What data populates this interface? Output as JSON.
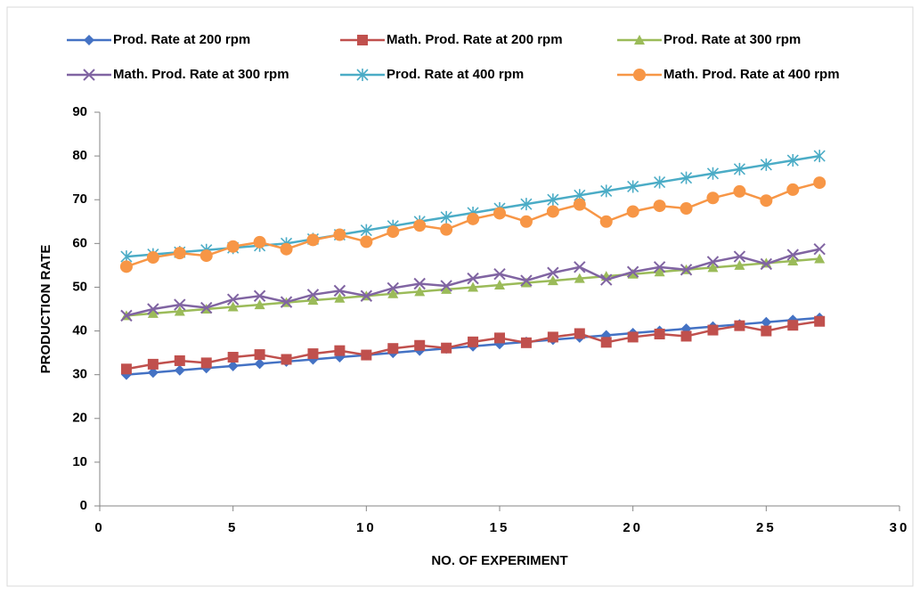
{
  "chart_data": {
    "type": "line",
    "x_label": "NO. OF EXPERIMENT",
    "y_label": "PRODUCTION RATE",
    "x": [
      1,
      2,
      3,
      4,
      5,
      6,
      7,
      8,
      9,
      10,
      11,
      12,
      13,
      14,
      15,
      16,
      17,
      18,
      19,
      20,
      21,
      22,
      23,
      24,
      25,
      26,
      27
    ],
    "xlim": [
      0,
      30
    ],
    "xticks": [
      0,
      5,
      10,
      15,
      20,
      25,
      30
    ],
    "ylim": [
      0,
      90
    ],
    "yticks": [
      0,
      10,
      20,
      30,
      40,
      50,
      60,
      70,
      80,
      90
    ],
    "grid": false,
    "legend": "top",
    "series": [
      {
        "name": "Prod. Rate at 200 rpm",
        "color": "#4472c4",
        "marker": "diamond",
        "values": [
          30,
          30.5,
          31,
          31.5,
          32,
          32.5,
          33,
          33.5,
          34,
          34.5,
          35,
          35.5,
          36,
          36.5,
          37,
          37.5,
          38,
          38.5,
          39,
          39.5,
          40,
          40.5,
          41,
          41.5,
          42,
          42.5,
          43
        ]
      },
      {
        "name": "Math. Prod. Rate at 200 rpm",
        "color": "#c0504d",
        "marker": "square",
        "values": [
          31.3,
          32.4,
          33.2,
          32.7,
          34,
          34.6,
          33.5,
          34.8,
          35.5,
          34.5,
          36,
          36.7,
          36.1,
          37.5,
          38.4,
          37.3,
          38.6,
          39.4,
          37.4,
          38.6,
          39.3,
          38.8,
          40.2,
          41.2,
          40,
          41.3,
          42.2
        ]
      },
      {
        "name": "Prod. Rate at 300 rpm",
        "color": "#9bbb59",
        "marker": "triangle",
        "values": [
          43.5,
          44,
          44.5,
          45,
          45.5,
          46,
          46.5,
          47,
          47.5,
          48,
          48.5,
          49,
          49.5,
          50,
          50.5,
          51,
          51.5,
          52,
          52.5,
          53,
          53.5,
          54,
          54.5,
          55,
          55.5,
          56,
          56.5
        ]
      },
      {
        "name": "Math. Prod. Rate at 300 rpm",
        "color": "#8064a2",
        "marker": "x",
        "values": [
          43.5,
          45,
          46,
          45.3,
          47.2,
          48,
          46.6,
          48.3,
          49.2,
          48,
          49.8,
          50.8,
          50.3,
          52,
          53,
          51.5,
          53.3,
          54.6,
          51.7,
          53.5,
          54.6,
          54,
          55.8,
          57,
          55.3,
          57.4,
          58.7
        ]
      },
      {
        "name": "Prod. Rate at 400 rpm",
        "color": "#4bacc6",
        "marker": "star",
        "values": [
          57,
          57.5,
          58,
          58.5,
          59,
          59.5,
          60,
          61,
          62,
          63,
          64,
          65,
          66,
          67,
          68,
          69,
          70,
          71,
          72,
          73,
          74,
          75,
          76,
          77,
          78,
          79,
          80
        ]
      },
      {
        "name": "Math. Prod. Rate at 400 rpm",
        "color": "#f79646",
        "marker": "circle",
        "values": [
          54.7,
          56.8,
          57.8,
          57.2,
          59.3,
          60.3,
          58.7,
          60.8,
          62,
          60.4,
          62.7,
          64.1,
          63.2,
          65.6,
          66.9,
          65,
          67.3,
          68.9,
          65,
          67.3,
          68.6,
          68,
          70.4,
          71.9,
          69.8,
          72.3,
          73.9
        ]
      }
    ]
  }
}
